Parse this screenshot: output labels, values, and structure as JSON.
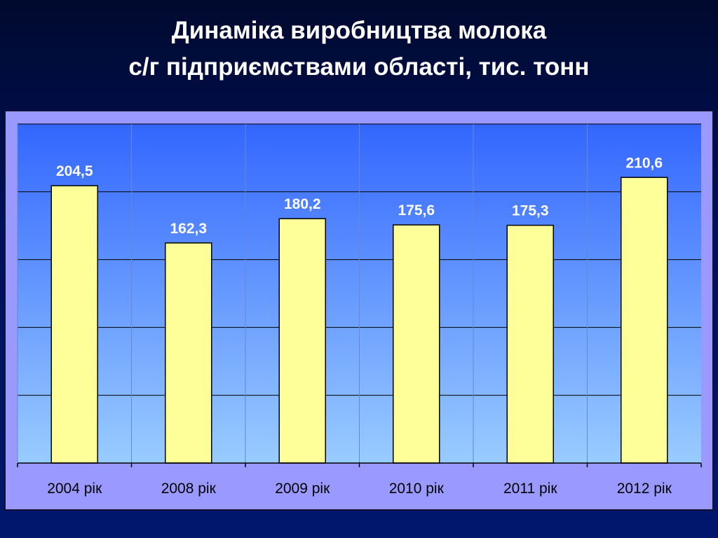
{
  "title": {
    "line1": "Динаміка виробництва молока",
    "line2": "с/г підприємствами області, тис. тонн"
  },
  "chart_data": {
    "type": "bar",
    "categories": [
      "2004 рік",
      "2008 рік",
      "2009 рік",
      "2010 рік",
      "2011 рік",
      "2012 рік"
    ],
    "values": [
      204.5,
      162.3,
      180.2,
      175.6,
      175.3,
      210.6
    ],
    "value_labels": [
      "204,5",
      "162,3",
      "180,2",
      "175,6",
      "175,3",
      "210,6"
    ],
    "ylim": [
      0,
      250
    ],
    "grid": true,
    "legend": "none",
    "colors": {
      "bar_fill": "#ffff99",
      "bar_stroke": "#000000",
      "plot_top": "#3366ff",
      "plot_bottom": "#99ccff",
      "frame": "#9999ff",
      "label_color": "#ffffff",
      "tick_color": "#000000"
    }
  }
}
